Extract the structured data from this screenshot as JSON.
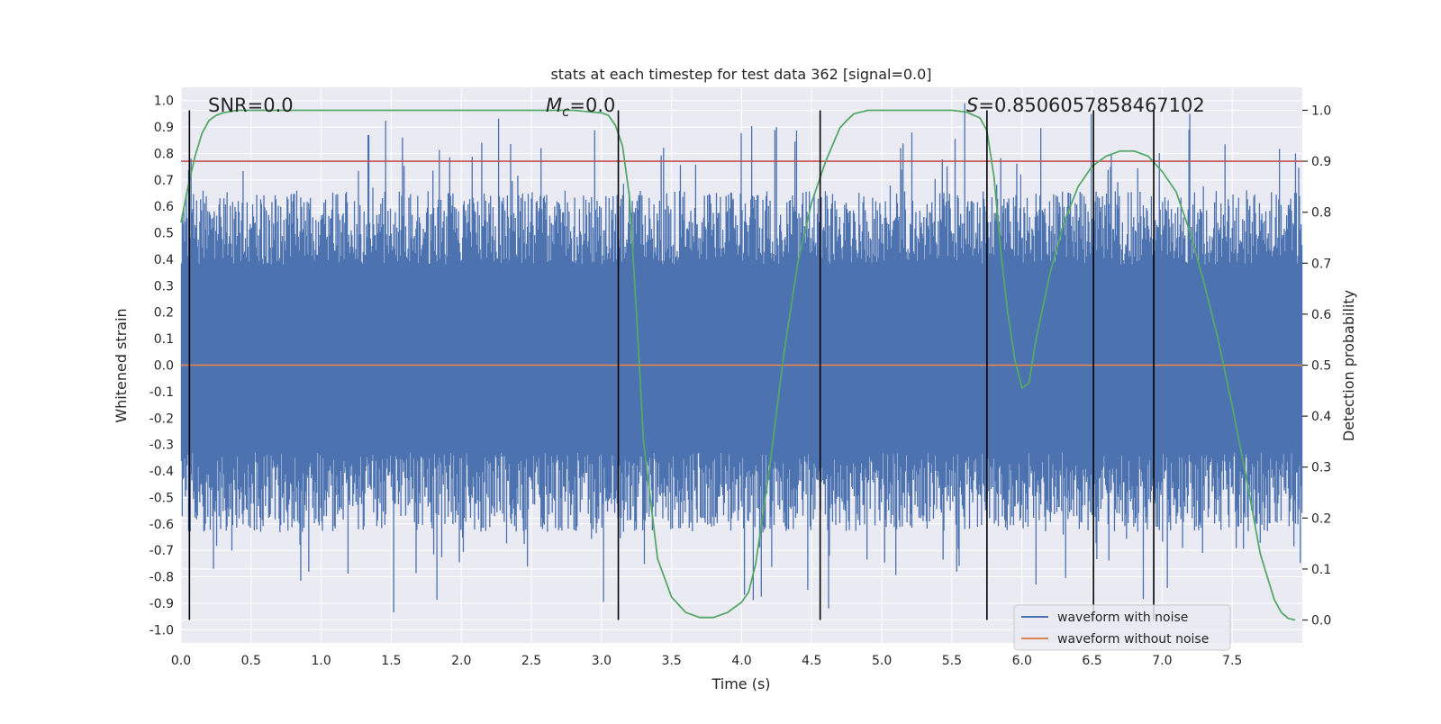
{
  "chart_data": {
    "type": "line",
    "title": "stats at each timestep for test data 362 [signal=0.0]",
    "xlabel": "Time (s)",
    "ylabel_left": "Whitened strain",
    "ylabel_right": "Detection probability",
    "xlim": [
      0.0,
      8.0
    ],
    "ylim_left": [
      -1.05,
      1.05
    ],
    "ylim_right": [
      -0.045,
      1.045
    ],
    "x_ticks": [
      0.0,
      0.5,
      1.0,
      1.5,
      2.0,
      2.5,
      3.0,
      3.5,
      4.0,
      4.5,
      5.0,
      5.5,
      6.0,
      6.5,
      7.0,
      7.5
    ],
    "x_tick_labels": [
      "0.0",
      "0.5",
      "1.0",
      "1.5",
      "2.0",
      "2.5",
      "3.0",
      "3.5",
      "4.0",
      "4.5",
      "5.0",
      "5.5",
      "6.0",
      "6.5",
      "7.0",
      "7.5"
    ],
    "y_left_ticks": [
      1.0,
      0.9,
      0.8,
      0.7,
      0.6,
      0.5,
      0.4,
      0.3,
      0.2,
      0.1,
      0.0,
      -0.1,
      -0.2,
      -0.3,
      -0.4,
      -0.5,
      -0.6,
      -0.7,
      -0.8,
      -0.9,
      -1.0
    ],
    "y_left_tick_labels": [
      "1.0",
      "0.9",
      "0.8",
      "0.7",
      "0.6",
      "0.5",
      "0.4",
      "0.3",
      "0.2",
      "0.1",
      "0.0",
      "-0.1",
      "-0.2",
      "-0.3",
      "-0.4",
      "-0.5",
      "-0.6",
      "-0.7",
      "-0.8",
      "-0.9",
      "-1.0"
    ],
    "y_right_ticks": [
      1.0,
      0.9,
      0.8,
      0.7,
      0.6,
      0.5,
      0.4,
      0.3,
      0.2,
      0.1,
      0.0
    ],
    "y_right_tick_labels": [
      "1.0",
      "0.9",
      "0.8",
      "0.7",
      "0.6",
      "0.5",
      "0.4",
      "0.3",
      "0.2",
      "0.1",
      "0.0"
    ],
    "grid": true,
    "legend_position": "lower-right",
    "annotations": {
      "snr": "SNR=0.0",
      "mc_symbol": "M",
      "mc_sub": "c",
      "mc_value": "=0.0",
      "s_symbol": "S",
      "s_value": "=0.8506057858467102"
    },
    "colors": {
      "background": "#eaeaf2",
      "grid": "#ffffff",
      "noisy": "#4c72b0",
      "clean": "#dd8452",
      "probability": "#55a868",
      "threshold": "#c44e52",
      "markers": "#000000"
    },
    "series": [
      {
        "name": "waveform with noise",
        "axis": "left",
        "kind": "noise-band",
        "envelope_low": -0.97,
        "envelope_high": 1.0,
        "dense_core": [
          -0.33,
          0.38
        ]
      },
      {
        "name": "waveform without noise",
        "axis": "left",
        "x": [
          0.0,
          8.0
        ],
        "values": [
          0.0,
          0.0
        ]
      },
      {
        "axis": "right",
        "x": [
          0.0,
          0.05,
          0.1,
          0.15,
          0.2,
          0.25,
          0.3,
          0.4,
          0.6,
          1.0,
          2.0,
          2.8,
          3.0,
          3.05,
          3.1,
          3.15,
          3.2,
          3.25,
          3.3,
          3.4,
          3.5,
          3.6,
          3.7,
          3.8,
          3.9,
          4.0,
          4.05,
          4.1,
          4.2,
          4.3,
          4.4,
          4.5,
          4.6,
          4.7,
          4.75,
          4.8,
          4.9,
          5.0,
          5.5,
          5.6,
          5.7,
          5.75,
          5.8,
          5.85,
          5.9,
          5.95,
          6.0,
          6.05,
          6.1,
          6.2,
          6.3,
          6.4,
          6.5,
          6.6,
          6.7,
          6.8,
          6.9,
          7.0,
          7.1,
          7.2,
          7.3,
          7.4,
          7.5,
          7.6,
          7.7,
          7.8,
          7.85,
          7.9,
          7.95
        ],
        "values": [
          0.78,
          0.85,
          0.91,
          0.955,
          0.98,
          0.99,
          0.995,
          1.0,
          1.0,
          1.0,
          1.0,
          1.0,
          0.995,
          0.99,
          0.97,
          0.93,
          0.83,
          0.6,
          0.35,
          0.12,
          0.045,
          0.015,
          0.005,
          0.005,
          0.015,
          0.035,
          0.055,
          0.11,
          0.3,
          0.52,
          0.7,
          0.82,
          0.9,
          0.965,
          0.98,
          0.993,
          1.0,
          1.0,
          1.0,
          0.997,
          0.985,
          0.96,
          0.87,
          0.72,
          0.6,
          0.51,
          0.455,
          0.465,
          0.55,
          0.68,
          0.78,
          0.85,
          0.89,
          0.91,
          0.92,
          0.92,
          0.91,
          0.88,
          0.84,
          0.76,
          0.66,
          0.55,
          0.42,
          0.28,
          0.13,
          0.04,
          0.015,
          0.003,
          0.0
        ]
      },
      {
        "axis": "right",
        "kind": "threshold",
        "values": [
          0.9,
          0.9
        ]
      }
    ],
    "vertical_markers_x": [
      0.06,
      3.12,
      4.56,
      5.75,
      6.51,
      6.94
    ]
  }
}
